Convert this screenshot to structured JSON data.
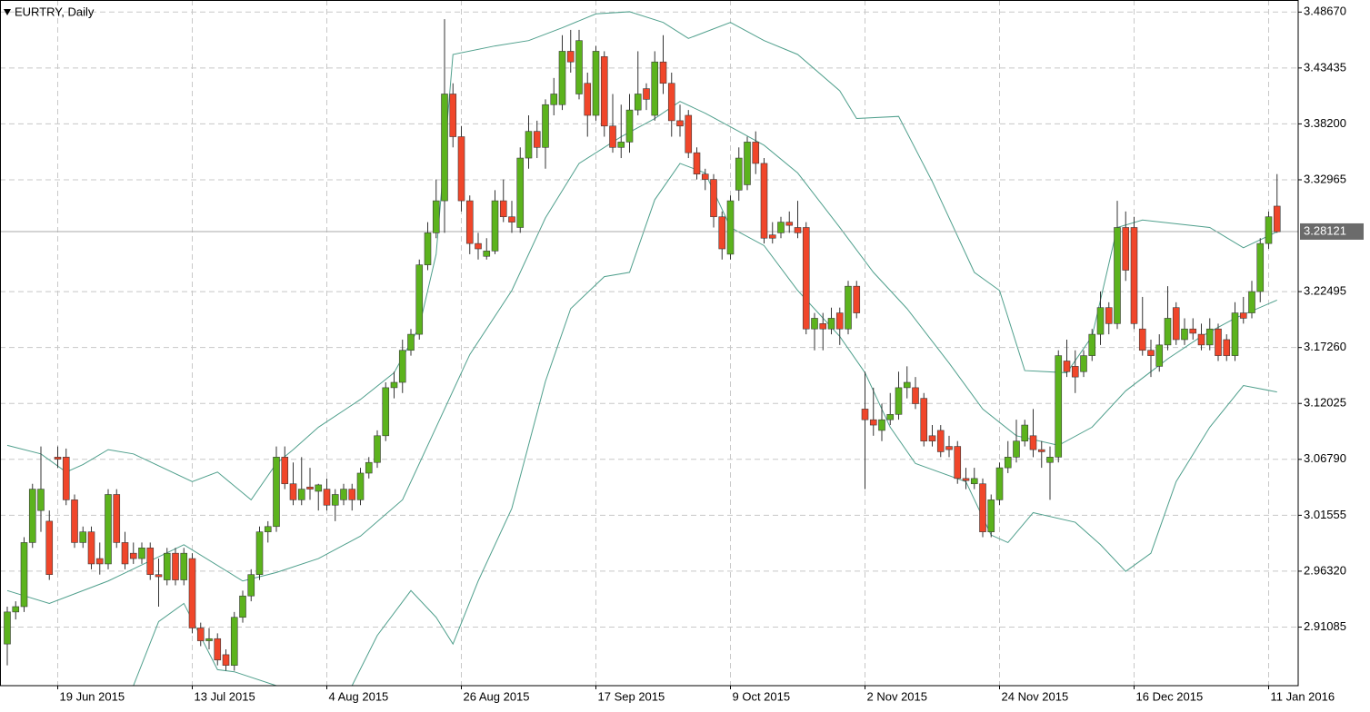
{
  "chart_data": {
    "type": "candlestick",
    "title": "EURTRY, Daily",
    "up_color": "#5cb31d",
    "down_color": "#f0462a",
    "band_color": "#4f9f8c",
    "grid": true,
    "ylim": [
      2.856,
      3.498
    ],
    "yticks": [
      {
        "value": 3.4867,
        "label": "3.48670"
      },
      3.43435,
      {
        "value": 3.382,
        "label": "3.38200"
      },
      3.32965,
      3.22495,
      {
        "value": 3.1726,
        "label": "3.17260"
      },
      3.12025,
      {
        "value": 3.0679,
        "label": "3.06790"
      },
      3.01555,
      {
        "value": 2.9632,
        "label": "2.96320"
      },
      2.91085
    ],
    "current_price": 3.28121,
    "categories": [
      null,
      null,
      null,
      null,
      null,
      null,
      "19 Jun 2015",
      null,
      null,
      null,
      null,
      null,
      null,
      null,
      null,
      null,
      null,
      null,
      null,
      null,
      null,
      null,
      "13 Jul 2015",
      null,
      null,
      null,
      null,
      null,
      null,
      null,
      null,
      null,
      null,
      null,
      null,
      null,
      null,
      null,
      "4 Aug 2015",
      null,
      null,
      null,
      null,
      null,
      null,
      null,
      null,
      null,
      null,
      null,
      null,
      null,
      null,
      null,
      "26 Aug 2015",
      null,
      null,
      null,
      null,
      null,
      null,
      null,
      null,
      null,
      null,
      null,
      null,
      null,
      null,
      null,
      "17 Sep 2015",
      null,
      null,
      null,
      null,
      null,
      null,
      null,
      null,
      null,
      null,
      null,
      null,
      null,
      null,
      null,
      "9 Oct 2015",
      null,
      null,
      null,
      null,
      null,
      null,
      null,
      null,
      null,
      null,
      null,
      null,
      null,
      null,
      null,
      "2 Nov 2015",
      null,
      null,
      null,
      null,
      null,
      null,
      null,
      null,
      null,
      null,
      null,
      null,
      null,
      null,
      null,
      "24 Nov 2015",
      null,
      null,
      null,
      null,
      null,
      null,
      null,
      null,
      null,
      null,
      null,
      null,
      null,
      null,
      null,
      "16 Dec 2015",
      null,
      null,
      null,
      null,
      null,
      null,
      null,
      null,
      null,
      null,
      null,
      null,
      null,
      null,
      null,
      "11 Jan 2016",
      null
    ],
    "open": [
      2.895,
      2.925,
      2.93,
      2.99,
      3.02,
      3.01,
      3.07,
      3.07,
      3.03,
      2.99,
      3.0,
      2.975,
      2.97,
      3.035,
      2.99,
      2.98,
      2.975,
      2.985,
      2.96,
      2.955,
      2.98,
      2.955,
      2.975,
      2.91,
      2.898,
      2.9,
      2.885,
      2.875,
      2.92,
      2.94,
      2.96,
      3.0,
      3.005,
      3.07,
      3.045,
      3.03,
      3.042,
      3.038,
      3.04,
      3.025,
      3.03,
      3.04,
      3.03,
      3.055,
      3.065,
      3.09,
      3.135,
      3.14,
      3.17,
      3.185,
      3.25,
      3.28,
      3.31,
      3.41,
      3.37,
      3.31,
      3.27,
      3.258,
      3.263,
      3.31,
      3.295,
      3.285,
      3.35,
      3.375,
      3.36,
      3.4,
      3.4,
      3.45,
      3.41,
      3.42,
      3.39,
      3.445,
      3.38,
      3.36,
      3.365,
      3.395,
      3.415,
      3.39,
      3.44,
      3.42,
      3.385,
      3.39,
      3.355,
      3.335,
      3.33,
      3.295,
      3.26,
      3.32,
      3.325,
      3.365,
      3.345,
      3.278,
      3.28,
      3.29,
      3.285,
      3.285,
      3.19,
      3.195,
      3.19,
      3.205,
      3.19,
      3.23,
      3.115,
      3.105,
      3.095,
      3.105,
      3.11,
      3.135,
      3.135,
      3.125,
      3.09,
      3.095,
      3.08,
      3.08,
      3.05,
      3.045,
      3.045,
      3.0,
      3.03,
      3.06,
      3.07,
      3.085,
      3.09,
      3.077,
      3.065,
      3.07,
      3.16,
      3.155,
      3.15,
      3.165,
      3.185,
      3.21,
      3.195,
      3.285,
      3.285,
      3.19,
      3.17,
      3.155,
      3.175,
      3.21,
      3.18,
      3.19,
      3.185,
      3.175,
      3.19,
      3.18,
      3.165,
      3.205,
      3.205,
      3.225,
      3.27,
      3.305
    ],
    "high": [
      2.93,
      2.935,
      2.995,
      3.045,
      3.08,
      3.02,
      3.08,
      3.078,
      3.035,
      3.005,
      3.005,
      2.99,
      3.04,
      3.04,
      3.0,
      2.99,
      2.99,
      2.99,
      2.975,
      2.985,
      2.985,
      2.985,
      2.98,
      2.915,
      2.91,
      2.905,
      2.89,
      2.925,
      2.945,
      2.965,
      3.005,
      3.01,
      3.08,
      3.08,
      3.065,
      3.07,
      3.06,
      3.045,
      3.05,
      3.04,
      3.045,
      3.045,
      3.06,
      3.07,
      3.095,
      3.14,
      3.15,
      3.18,
      3.19,
      3.255,
      3.29,
      3.33,
      3.48,
      3.42,
      3.38,
      3.315,
      3.28,
      3.275,
      3.32,
      3.33,
      3.31,
      3.36,
      3.39,
      3.385,
      3.405,
      3.425,
      3.465,
      3.47,
      3.47,
      3.43,
      3.455,
      3.45,
      3.41,
      3.4,
      3.41,
      3.45,
      3.42,
      3.45,
      3.465,
      3.43,
      3.4,
      3.395,
      3.36,
      3.34,
      3.335,
      3.3,
      3.315,
      3.36,
      3.37,
      3.375,
      3.35,
      3.29,
      3.295,
      3.3,
      3.31,
      3.29,
      3.205,
      3.205,
      3.21,
      3.21,
      3.235,
      3.235,
      3.15,
      3.135,
      3.12,
      3.13,
      3.15,
      3.155,
      3.145,
      3.13,
      3.1,
      3.1,
      3.09,
      3.085,
      3.06,
      3.06,
      3.05,
      3.035,
      3.065,
      3.085,
      3.105,
      3.105,
      3.115,
      3.085,
      3.08,
      3.17,
      3.18,
      3.17,
      3.17,
      3.19,
      3.225,
      3.215,
      3.31,
      3.3,
      3.295,
      3.22,
      3.18,
      3.185,
      3.23,
      3.215,
      3.2,
      3.2,
      3.195,
      3.2,
      3.195,
      3.185,
      3.215,
      3.22,
      3.235,
      3.275,
      3.3,
      3.335
    ],
    "low": [
      2.875,
      2.918,
      2.925,
      2.985,
      3.0,
      2.955,
      3.06,
      3.025,
      2.985,
      2.985,
      2.965,
      2.96,
      2.965,
      2.985,
      2.965,
      2.97,
      2.97,
      2.955,
      2.93,
      2.95,
      2.95,
      2.95,
      2.905,
      2.893,
      2.89,
      2.875,
      2.87,
      2.87,
      2.915,
      2.935,
      2.955,
      2.99,
      3.0,
      3.04,
      3.025,
      3.025,
      3.03,
      3.02,
      3.02,
      3.01,
      3.025,
      3.02,
      3.025,
      3.05,
      3.06,
      3.085,
      3.125,
      3.13,
      3.165,
      3.18,
      3.245,
      3.275,
      3.28,
      3.36,
      3.3,
      3.26,
      3.255,
      3.255,
      3.26,
      3.29,
      3.28,
      3.28,
      3.34,
      3.35,
      3.34,
      3.39,
      3.395,
      3.43,
      3.405,
      3.37,
      3.385,
      3.37,
      3.355,
      3.35,
      3.355,
      3.39,
      3.395,
      3.385,
      3.41,
      3.37,
      3.37,
      3.35,
      3.33,
      3.32,
      3.285,
      3.255,
      3.255,
      3.31,
      3.32,
      3.335,
      3.27,
      3.27,
      3.275,
      3.28,
      3.275,
      3.185,
      3.17,
      3.17,
      3.185,
      3.175,
      3.185,
      3.2,
      3.04,
      3.09,
      3.085,
      3.1,
      3.105,
      3.125,
      3.115,
      3.08,
      3.08,
      3.07,
      3.07,
      3.045,
      3.04,
      3.04,
      2.995,
      2.995,
      3.025,
      3.055,
      3.065,
      3.08,
      3.07,
      3.06,
      3.03,
      3.065,
      3.145,
      3.13,
      3.145,
      3.16,
      3.175,
      3.185,
      3.19,
      3.235,
      3.19,
      3.165,
      3.145,
      3.15,
      3.17,
      3.175,
      3.175,
      3.18,
      3.17,
      3.17,
      3.16,
      3.16,
      3.16,
      3.195,
      3.2,
      3.215,
      3.265,
      3.28
    ],
    "close": [
      2.925,
      2.93,
      2.99,
      3.04,
      3.04,
      2.96,
      3.068,
      3.03,
      2.99,
      3.0,
      2.97,
      2.97,
      3.035,
      2.99,
      2.97,
      2.975,
      2.985,
      2.96,
      2.958,
      2.98,
      2.955,
      2.98,
      2.91,
      2.898,
      2.9,
      2.88,
      2.875,
      2.92,
      2.94,
      2.96,
      3.0,
      3.005,
      3.07,
      3.045,
      3.03,
      3.04,
      3.04,
      3.044,
      3.025,
      3.035,
      3.04,
      3.03,
      3.055,
      3.065,
      3.09,
      3.135,
      3.14,
      3.17,
      3.185,
      3.25,
      3.28,
      3.31,
      3.41,
      3.37,
      3.31,
      3.27,
      3.265,
      3.263,
      3.31,
      3.295,
      3.29,
      3.35,
      3.375,
      3.36,
      3.4,
      3.41,
      3.45,
      3.44,
      3.46,
      3.39,
      3.45,
      3.38,
      3.36,
      3.365,
      3.395,
      3.41,
      3.405,
      3.44,
      3.42,
      3.385,
      3.38,
      3.355,
      3.335,
      3.33,
      3.295,
      3.265,
      3.31,
      3.35,
      3.365,
      3.345,
      3.275,
      3.275,
      3.29,
      3.287,
      3.28,
      3.19,
      3.2,
      3.19,
      3.2,
      3.19,
      3.23,
      3.205,
      3.105,
      3.1,
      3.105,
      3.11,
      3.135,
      3.14,
      3.12,
      3.085,
      3.085,
      3.075,
      3.077,
      3.05,
      3.048,
      3.05,
      3.0,
      3.03,
      3.06,
      3.07,
      3.085,
      3.1,
      3.077,
      3.075,
      3.07,
      3.165,
      3.15,
      3.145,
      3.165,
      3.185,
      3.21,
      3.195,
      3.285,
      3.245,
      3.195,
      3.17,
      3.165,
      3.175,
      3.2,
      3.18,
      3.19,
      3.186,
      3.175,
      3.19,
      3.165,
      3.165,
      3.205,
      3.2,
      3.225,
      3.27,
      3.295,
      3.281
    ],
    "bands": [
      {
        "x": [
          0,
          4,
          7,
          9,
          12,
          15,
          22,
          25,
          29,
          32,
          34,
          37,
          42,
          46,
          49,
          51,
          52,
          53,
          58,
          62,
          66,
          70,
          74,
          78,
          81,
          86,
          90,
          94,
          99,
          101,
          106,
          110,
          115,
          118,
          121,
          126,
          129,
          132,
          135,
          143,
          147,
          151
        ],
        "values": [
          3.081,
          3.073,
          3.056,
          3.063,
          3.077,
          3.073,
          3.047,
          3.056,
          3.03,
          3.064,
          3.077,
          3.098,
          3.124,
          3.149,
          3.192,
          3.26,
          3.353,
          3.447,
          3.455,
          3.46,
          3.472,
          3.485,
          3.487,
          3.477,
          3.462,
          3.477,
          3.46,
          3.447,
          3.413,
          3.387,
          3.389,
          3.328,
          3.243,
          3.226,
          3.151,
          3.149,
          3.183,
          3.285,
          3.292,
          3.285,
          3.266,
          3.281
        ]
      },
      {
        "x": [
          0,
          5,
          12,
          21,
          28,
          32,
          37,
          42,
          47,
          51,
          55,
          60,
          64,
          68,
          73,
          77,
          80,
          83,
          87,
          90,
          94,
          99,
          103,
          107,
          112,
          116,
          120,
          125,
          129,
          133,
          138,
          142,
          146,
          151
        ],
        "values": [
          2.945,
          2.933,
          2.954,
          2.988,
          2.954,
          2.962,
          2.975,
          2.996,
          3.03,
          3.098,
          3.166,
          3.226,
          3.294,
          3.345,
          3.37,
          3.387,
          3.403,
          3.392,
          3.375,
          3.362,
          3.336,
          3.285,
          3.243,
          3.209,
          3.158,
          3.115,
          3.09,
          3.081,
          3.098,
          3.132,
          3.162,
          3.183,
          3.2,
          3.217
        ]
      },
      {
        "x": [
          15,
          18,
          21,
          25,
          27,
          32,
          36,
          41,
          44,
          48,
          51,
          53,
          56,
          60,
          64,
          67,
          71,
          74,
          77,
          80,
          83,
          86,
          90,
          94,
          99,
          102,
          105,
          108,
          114,
          117,
          119,
          122,
          127,
          130,
          133,
          136,
          139,
          143,
          147,
          151
        ],
        "values": [
          2.856,
          2.916,
          2.933,
          2.871,
          2.869,
          2.856,
          null,
          2.856,
          2.903,
          2.945,
          2.92,
          2.895,
          2.954,
          3.022,
          3.141,
          3.209,
          3.239,
          3.243,
          3.311,
          3.345,
          3.336,
          3.285,
          3.268,
          3.226,
          3.183,
          3.149,
          3.098,
          3.064,
          3.047,
          2.997,
          2.99,
          3.018,
          3.009,
          2.988,
          2.963,
          2.98,
          3.047,
          3.098,
          3.137,
          3.131
        ]
      }
    ]
  }
}
